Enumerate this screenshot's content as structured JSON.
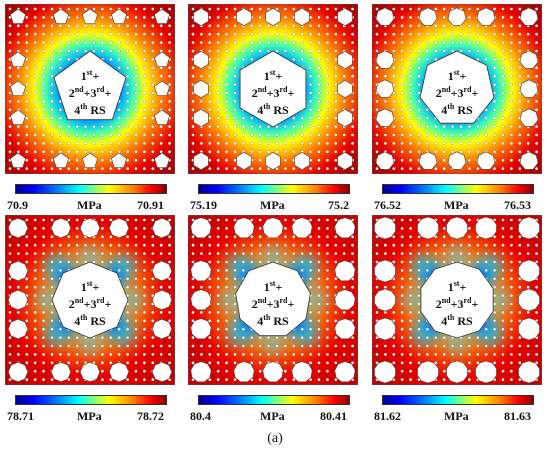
{
  "caption": "(a)",
  "unit_label": "MPa",
  "center_label": {
    "line1": "1st+",
    "line2": "2nd+3rd+",
    "line3": "4th RS"
  },
  "panels": [
    {
      "id": "p1",
      "hole_shape": "pentagon",
      "center_shape": "pentagon",
      "min": "70.9",
      "max": "70.91",
      "pattern": "ring"
    },
    {
      "id": "p2",
      "hole_shape": "hexagon",
      "center_shape": "hexagon",
      "min": "75.19",
      "max": "75.2",
      "pattern": "ring"
    },
    {
      "id": "p3",
      "hole_shape": "heptagon",
      "center_shape": "heptagon",
      "min": "76.52",
      "max": "76.53",
      "pattern": "ring"
    },
    {
      "id": "p4",
      "hole_shape": "octagon",
      "center_shape": "octagon",
      "min": "78.71",
      "max": "78.72",
      "pattern": "lobes"
    },
    {
      "id": "p5",
      "hole_shape": "nonagon",
      "center_shape": "nonagon",
      "min": "80.4",
      "max": "80.41",
      "pattern": "lobes"
    },
    {
      "id": "p6",
      "hole_shape": "decagon",
      "center_shape": "decagon",
      "min": "81.62",
      "max": "81.63",
      "pattern": "lobes"
    }
  ],
  "colors": {
    "dark_blue": "#00008f",
    "blue": "#0000ff",
    "cyan": "#00ffff",
    "yellow": "#ffff00",
    "orange": "#ff8000",
    "red": "#e80000",
    "dark_red": "#8a0000"
  }
}
